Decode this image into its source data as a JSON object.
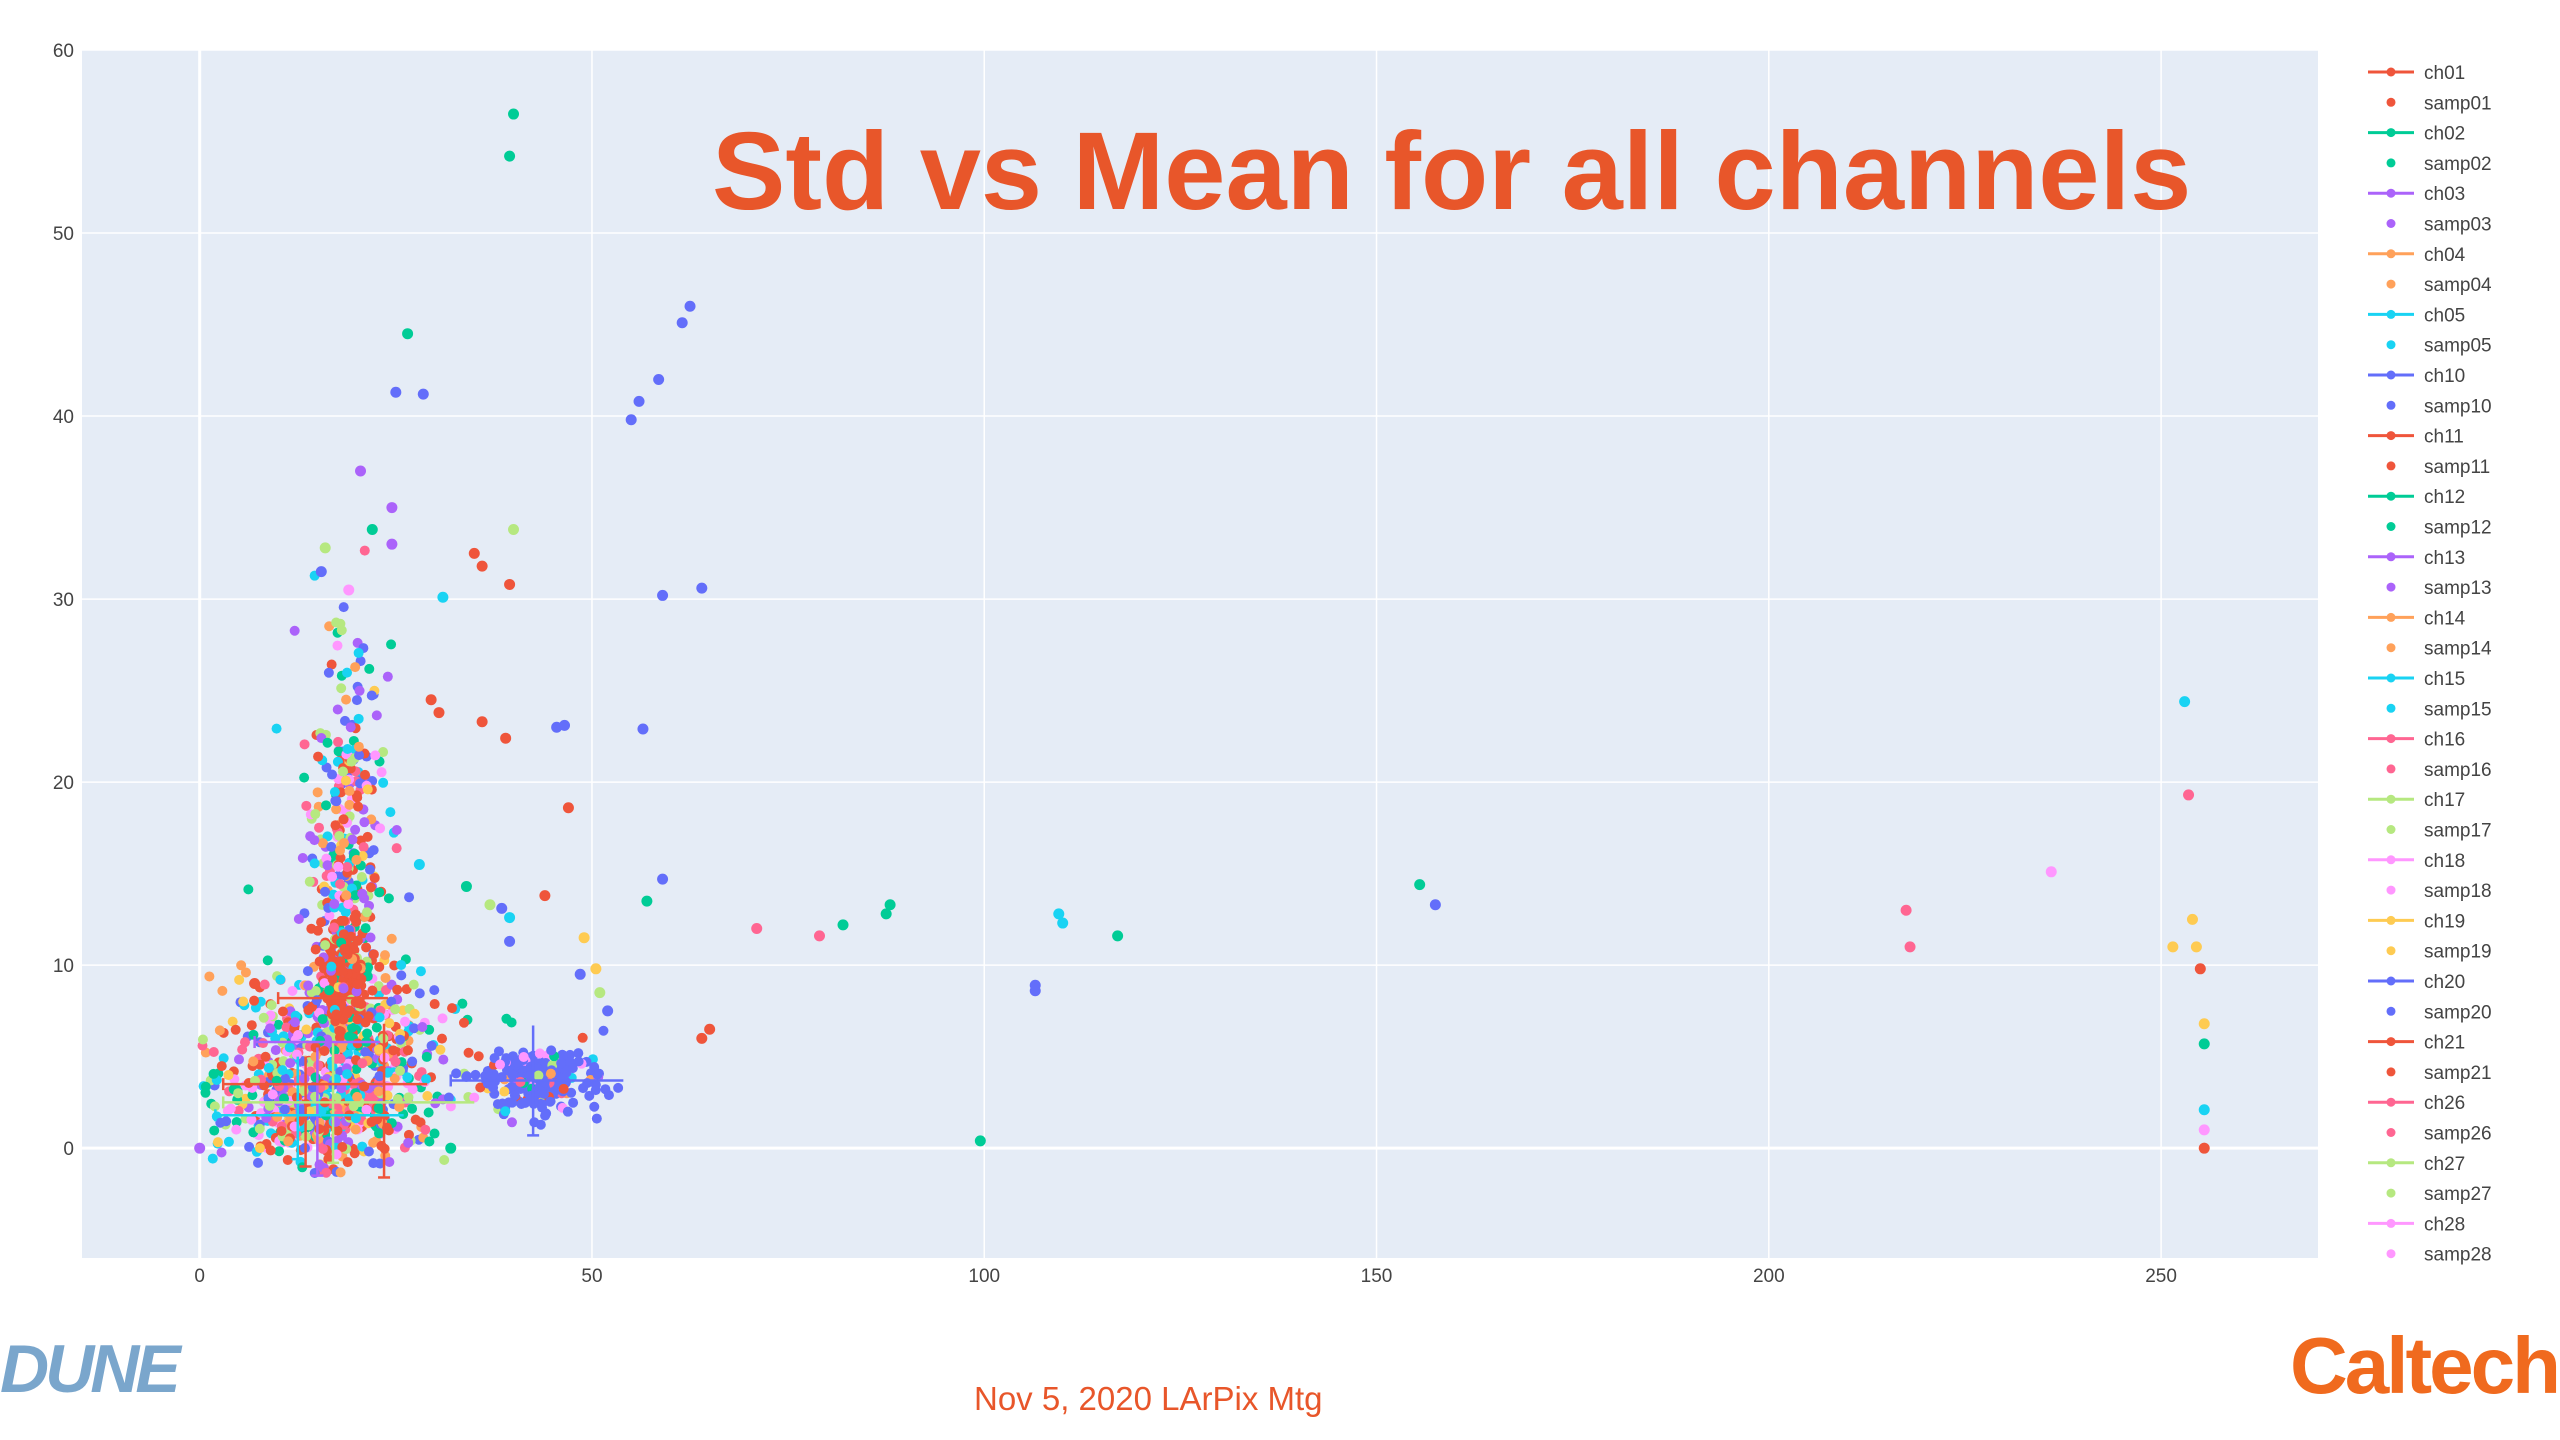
{
  "slide": {
    "footer": "Nov 5, 2020 LArPix Mtg",
    "logo_left": "DUNE",
    "logo_right": "Caltech"
  },
  "colors": {
    "title": "#e8562a",
    "plot_bg": "#e5ecf6",
    "grid": "#ffffff"
  },
  "chart_data": {
    "type": "scatter",
    "title": "Std vs Mean for all channels",
    "xlabel": "",
    "ylabel": "",
    "xlim": [
      -15,
      270
    ],
    "ylim": [
      -6,
      60
    ],
    "xticks": [
      0,
      50,
      100,
      150,
      200,
      250
    ],
    "yticks": [
      0,
      10,
      20,
      30,
      40,
      50,
      60
    ],
    "grid": true,
    "legend_position": "right",
    "palette": [
      "#ef553b",
      "#00cc96",
      "#ab63fa",
      "#ffa15a",
      "#19d3f3",
      "#636efa",
      "#ef553b",
      "#00cc96",
      "#ab63fa",
      "#ffa15a",
      "#19d3f3",
      "#ff6692",
      "#b6e880",
      "#ff97ff",
      "#fecb52",
      "#636efa",
      "#ef553b",
      "#ff6692",
      "#b6e880",
      "#ff97ff"
    ],
    "legend": [
      "ch01",
      "samp01",
      "ch02",
      "samp02",
      "ch03",
      "samp03",
      "ch04",
      "samp04",
      "ch05",
      "samp05",
      "ch10",
      "samp10",
      "ch11",
      "samp11",
      "ch12",
      "samp12",
      "ch13",
      "samp13",
      "ch14",
      "samp14",
      "ch15",
      "samp15",
      "ch16",
      "samp16",
      "ch17",
      "samp17",
      "ch18",
      "samp18",
      "ch19",
      "samp19",
      "ch20",
      "samp20",
      "ch21",
      "samp21",
      "ch26",
      "samp26",
      "ch27",
      "samp27",
      "ch28",
      "samp28"
    ],
    "points": [
      {
        "x": 40,
        "y": 56.5,
        "c": 1
      },
      {
        "x": 39.5,
        "y": 54.2,
        "c": 1
      },
      {
        "x": 26.5,
        "y": 44.5,
        "c": 1
      },
      {
        "x": 25,
        "y": 41.3,
        "c": 5
      },
      {
        "x": 28.5,
        "y": 41.2,
        "c": 5
      },
      {
        "x": 20.5,
        "y": 37,
        "c": 2
      },
      {
        "x": 24.5,
        "y": 35,
        "c": 2
      },
      {
        "x": 24.5,
        "y": 33,
        "c": 2
      },
      {
        "x": 22,
        "y": 33.8,
        "c": 1
      },
      {
        "x": 40,
        "y": 33.8,
        "c": 12
      },
      {
        "x": 35,
        "y": 32.5,
        "c": 0
      },
      {
        "x": 36,
        "y": 31.8,
        "c": 0
      },
      {
        "x": 39.5,
        "y": 30.8,
        "c": 0
      },
      {
        "x": 31,
        "y": 30.1,
        "c": 4
      },
      {
        "x": 16,
        "y": 32.8,
        "c": 12
      },
      {
        "x": 15.5,
        "y": 31.5,
        "c": 5
      },
      {
        "x": 19,
        "y": 30.5,
        "c": 13
      },
      {
        "x": 62.5,
        "y": 46,
        "c": 5
      },
      {
        "x": 61.5,
        "y": 45.1,
        "c": 5
      },
      {
        "x": 58.5,
        "y": 42,
        "c": 5
      },
      {
        "x": 56,
        "y": 40.8,
        "c": 5
      },
      {
        "x": 55,
        "y": 39.8,
        "c": 5
      },
      {
        "x": 59,
        "y": 30.2,
        "c": 5
      },
      {
        "x": 64,
        "y": 30.6,
        "c": 5
      },
      {
        "x": 45.5,
        "y": 23,
        "c": 5
      },
      {
        "x": 46.5,
        "y": 23.1,
        "c": 5
      },
      {
        "x": 56.5,
        "y": 22.9,
        "c": 5
      },
      {
        "x": 36,
        "y": 23.3,
        "c": 0
      },
      {
        "x": 39,
        "y": 22.4,
        "c": 0
      },
      {
        "x": 29.5,
        "y": 24.5,
        "c": 0
      },
      {
        "x": 30.5,
        "y": 23.8,
        "c": 0
      },
      {
        "x": 47,
        "y": 18.6,
        "c": 0
      },
      {
        "x": 28,
        "y": 15.5,
        "c": 4
      },
      {
        "x": 34,
        "y": 14.3,
        "c": 1
      },
      {
        "x": 44,
        "y": 13.8,
        "c": 0
      },
      {
        "x": 37,
        "y": 13.3,
        "c": 12
      },
      {
        "x": 38.5,
        "y": 13.1,
        "c": 5
      },
      {
        "x": 39.5,
        "y": 12.6,
        "c": 4
      },
      {
        "x": 39.5,
        "y": 11.3,
        "c": 5
      },
      {
        "x": 57,
        "y": 13.5,
        "c": 1
      },
      {
        "x": 59,
        "y": 14.7,
        "c": 5
      },
      {
        "x": 49,
        "y": 11.5,
        "c": 14
      },
      {
        "x": 50.5,
        "y": 9.8,
        "c": 14
      },
      {
        "x": 48.5,
        "y": 9.5,
        "c": 5
      },
      {
        "x": 51,
        "y": 8.5,
        "c": 12
      },
      {
        "x": 52,
        "y": 7.5,
        "c": 5
      },
      {
        "x": 65,
        "y": 6.5,
        "c": 0
      },
      {
        "x": 64,
        "y": 6,
        "c": 0
      },
      {
        "x": 7,
        "y": 9,
        "c": 0
      },
      {
        "x": 0,
        "y": 0,
        "c": 2
      },
      {
        "x": 32,
        "y": 0,
        "c": 1
      },
      {
        "x": 71,
        "y": 12,
        "c": 11
      },
      {
        "x": 79,
        "y": 11.6,
        "c": 11
      },
      {
        "x": 82,
        "y": 12.2,
        "c": 1
      },
      {
        "x": 87.5,
        "y": 12.8,
        "c": 1
      },
      {
        "x": 88,
        "y": 13.3,
        "c": 1
      },
      {
        "x": 99.5,
        "y": 0.4,
        "c": 1
      },
      {
        "x": 106.5,
        "y": 8.6,
        "c": 5
      },
      {
        "x": 106.5,
        "y": 8.9,
        "c": 5
      },
      {
        "x": 109.5,
        "y": 12.8,
        "c": 4
      },
      {
        "x": 110,
        "y": 12.3,
        "c": 4
      },
      {
        "x": 117,
        "y": 11.6,
        "c": 1
      },
      {
        "x": 155.5,
        "y": 14.4,
        "c": 1
      },
      {
        "x": 157.5,
        "y": 13.3,
        "c": 5
      },
      {
        "x": 217.5,
        "y": 13,
        "c": 11
      },
      {
        "x": 218,
        "y": 11,
        "c": 11
      },
      {
        "x": 236,
        "y": 15.1,
        "c": 13
      },
      {
        "x": 253,
        "y": 24.4,
        "c": 4
      },
      {
        "x": 253.5,
        "y": 19.3,
        "c": 11
      },
      {
        "x": 254,
        "y": 12.5,
        "c": 14
      },
      {
        "x": 251.5,
        "y": 11,
        "c": 14
      },
      {
        "x": 254.5,
        "y": 11,
        "c": 14
      },
      {
        "x": 255,
        "y": 9.8,
        "c": 0
      },
      {
        "x": 255.5,
        "y": 6.8,
        "c": 14
      },
      {
        "x": 255.5,
        "y": 5.7,
        "c": 1
      },
      {
        "x": 255.5,
        "y": 2.1,
        "c": 4
      },
      {
        "x": 255.5,
        "y": 1,
        "c": 13
      },
      {
        "x": 255.5,
        "y": 0,
        "c": 0
      }
    ],
    "clusters": [
      {
        "name": "main-column",
        "cx": 18.5,
        "sx": 2.5,
        "cy": 16,
        "sy": 6,
        "n": 340
      },
      {
        "name": "base-cluster",
        "cx": 17,
        "sx": 7,
        "cy": 5,
        "sy": 2.6,
        "n": 620
      },
      {
        "name": "low-cluster",
        "cx": 15,
        "sx": 5.5,
        "cy": 1.6,
        "sy": 1.1,
        "n": 300
      },
      {
        "name": "red-core",
        "cx": 18.5,
        "sx": 1.4,
        "cy": 9.5,
        "sy": 1.3,
        "n": 160,
        "c": 0
      },
      {
        "name": "blue-cluster",
        "cx": 43,
        "sx": 4.2,
        "cy": 3.8,
        "sy": 0.9,
        "n": 240,
        "c": 15
      }
    ],
    "error_bars": [
      {
        "x": 15,
        "y": 2,
        "xerr": 0,
        "yerr": 3.5,
        "c": 2
      },
      {
        "x": 13.5,
        "y": 2,
        "xerr": 0,
        "yerr": 3,
        "c": 6
      },
      {
        "x": 17,
        "y": 2.5,
        "xerr": 0,
        "yerr": 3.3,
        "c": 12
      },
      {
        "x": 23.5,
        "y": 2.6,
        "xerr": 0,
        "yerr": 4.2,
        "c": 0
      },
      {
        "x": 12.5,
        "y": 2.2,
        "xerr": 0,
        "yerr": 2.8,
        "c": 4
      },
      {
        "x": 42.5,
        "y": 3.7,
        "xerr": 0,
        "yerr": 3,
        "c": 5
      },
      {
        "x": 16,
        "y": 3.5,
        "xerr": 13,
        "yerr": 0,
        "c": 0
      },
      {
        "x": 14,
        "y": 1.8,
        "xerr": 12,
        "yerr": 0,
        "c": 4
      },
      {
        "x": 19,
        "y": 2.5,
        "xerr": 16,
        "yerr": 0,
        "c": 12
      },
      {
        "x": 43,
        "y": 3.7,
        "xerr": 11,
        "yerr": 0,
        "c": 5
      },
      {
        "x": 17,
        "y": 8.2,
        "xerr": 7,
        "yerr": 0,
        "c": 0
      },
      {
        "x": 15,
        "y": 5.8,
        "xerr": 8,
        "yerr": 0,
        "c": 2
      }
    ]
  }
}
